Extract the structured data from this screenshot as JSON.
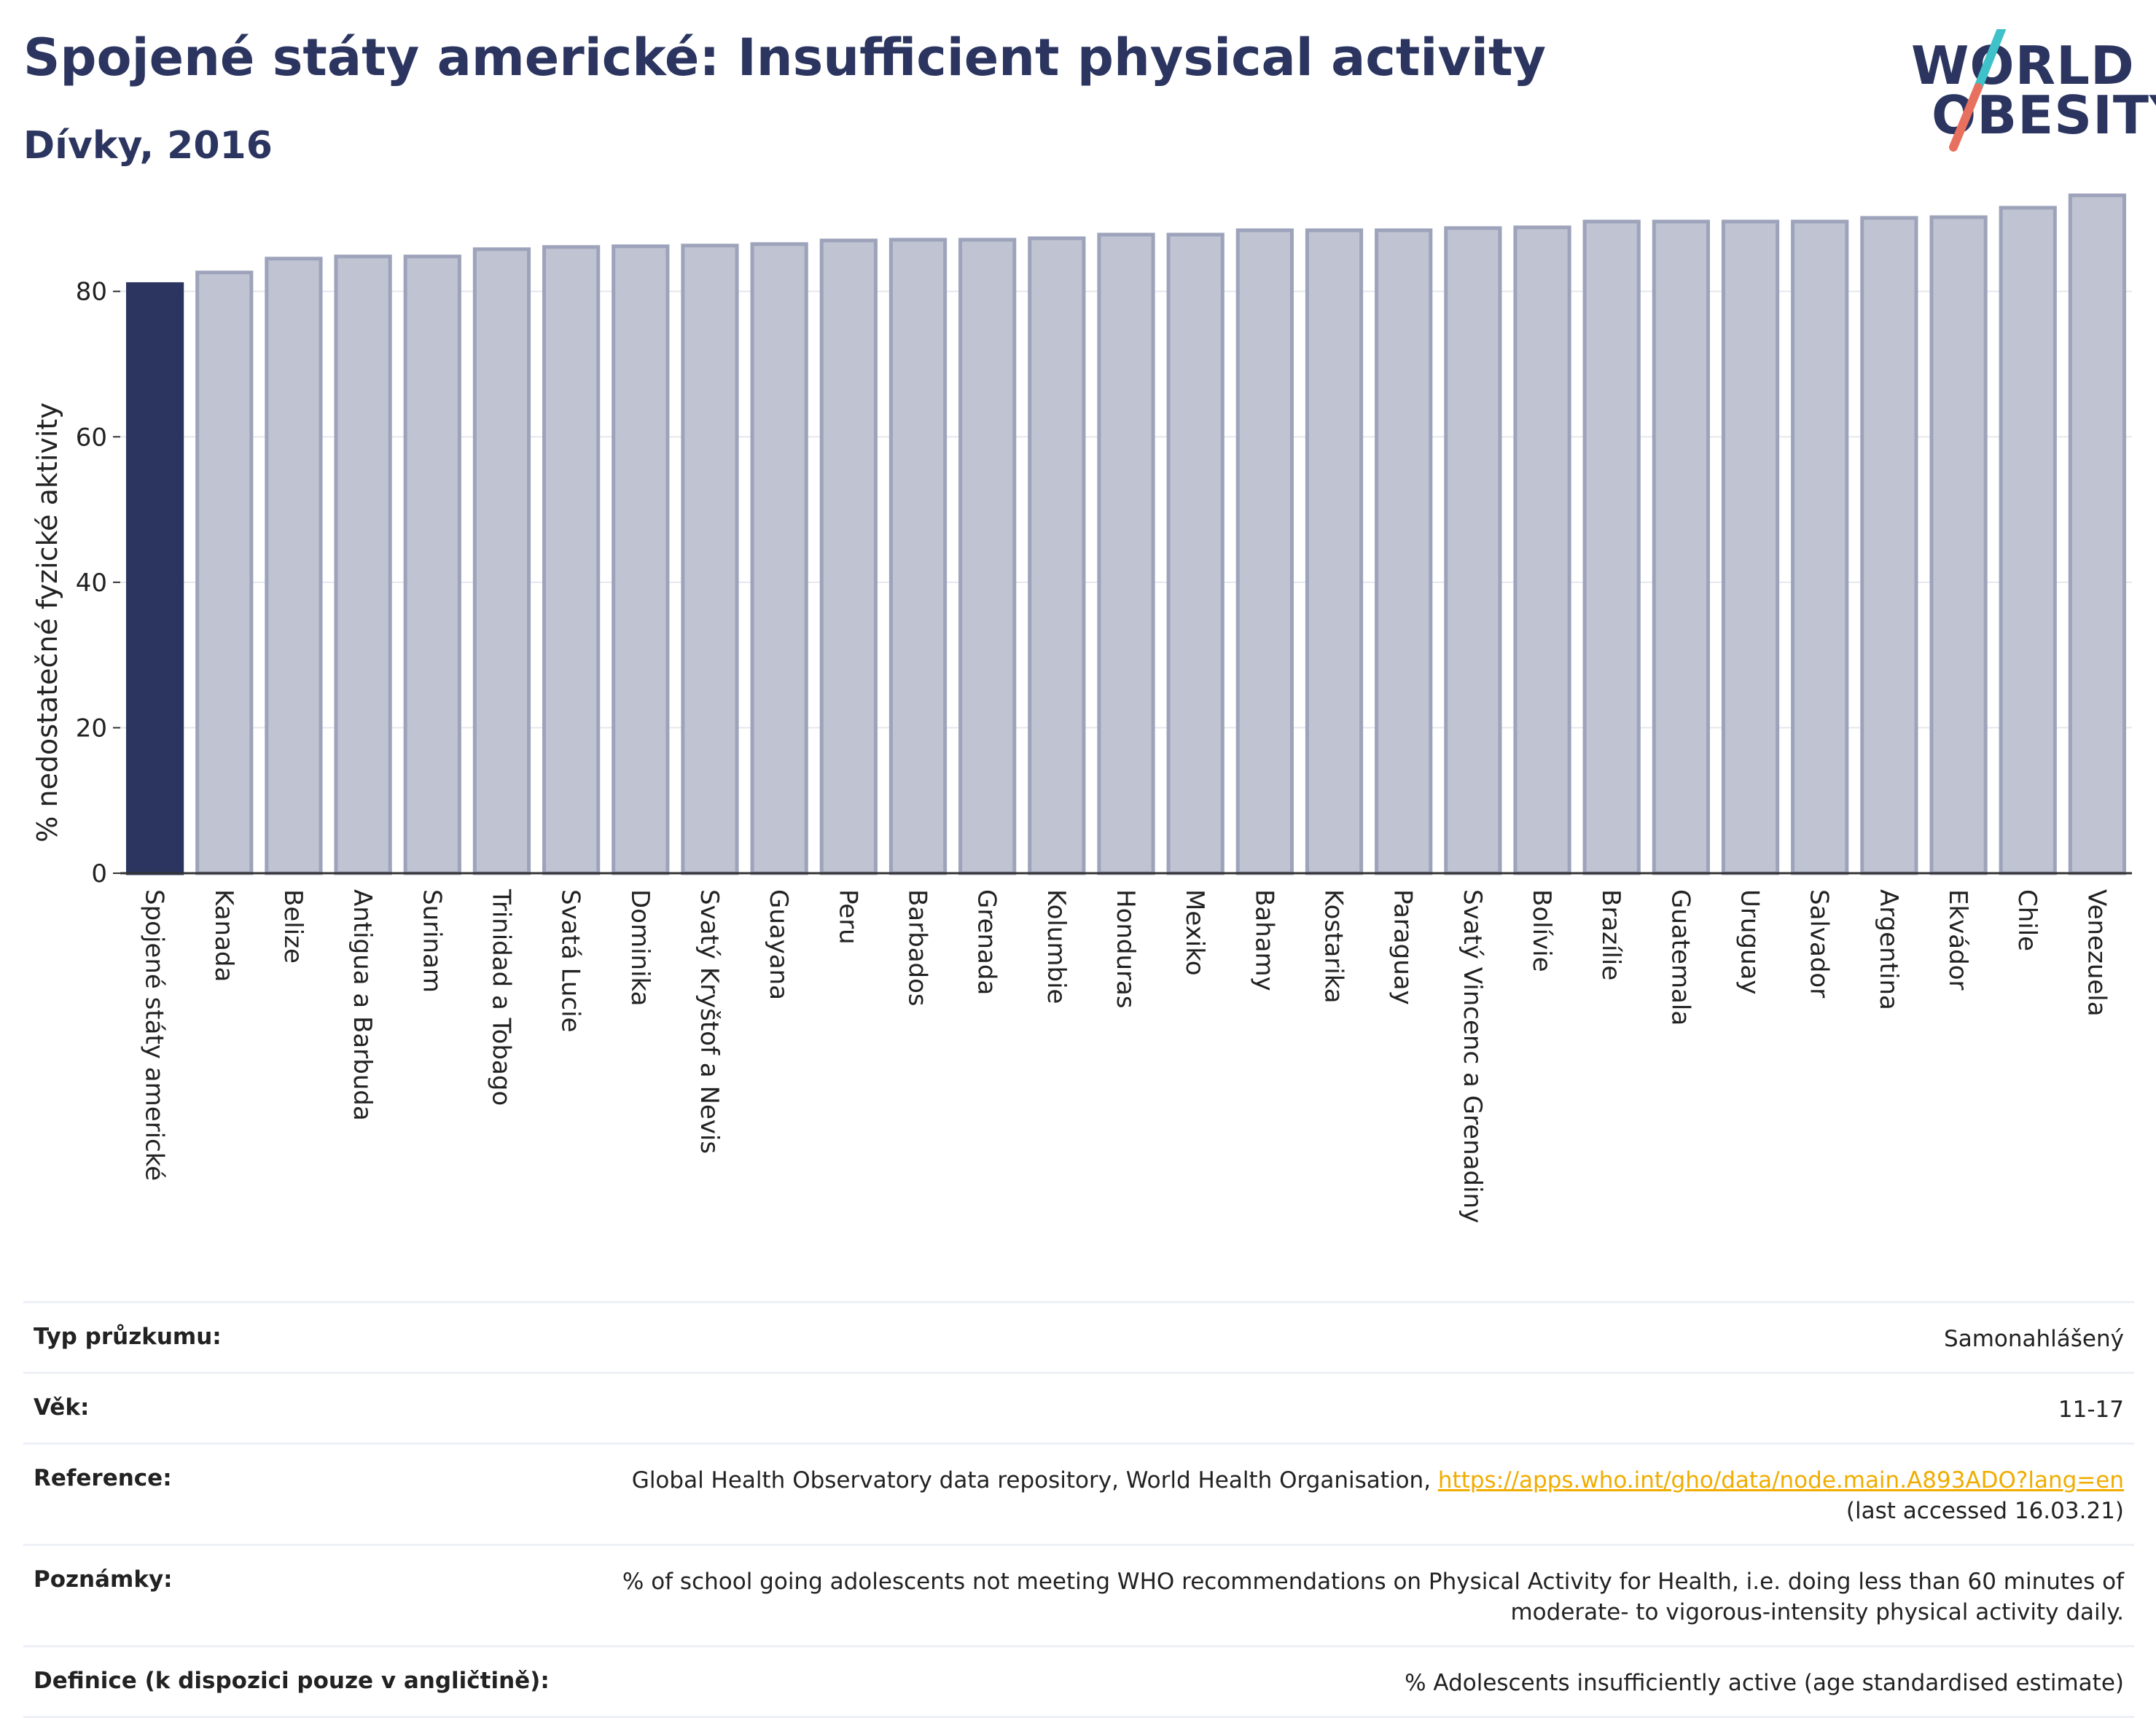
{
  "header": {
    "title": "Spojené státy americké: Insufficient physical activity",
    "subtitle": "Dívky, 2016"
  },
  "logo": {
    "line1": "WORLD",
    "line2": "OBESITY",
    "colors": [
      "#2b3560",
      "#3fc1c9",
      "#e8705f"
    ]
  },
  "chart_data": {
    "type": "bar",
    "ylabel": "% nedostatečné fyzické aktivity",
    "ylim": [
      0,
      93
    ],
    "yticks": [
      0,
      20,
      40,
      60,
      80
    ],
    "grid": true,
    "highlight_color": "#2b3560",
    "bar_color": "#c0c3d1",
    "bar_edge_color": "#9da3ba",
    "categories": [
      "Spojené státy americké",
      "Kanada",
      "Belize",
      "Antigua a Barbuda",
      "Surinam",
      "Trinidad a Tobago",
      "Svatá Lucie",
      "Dominika",
      "Svatý Kryštof a Nevis",
      "Guayana",
      "Peru",
      "Barbados",
      "Grenada",
      "Kolumbie",
      "Honduras",
      "Mexiko",
      "Bahamy",
      "Kostarika",
      "Paraguay",
      "Svatý Vincenc a Grenadiny",
      "Bolívie",
      "Brazílie",
      "Guatemala",
      "Uruguay",
      "Salvador",
      "Argentina",
      "Ekvádor",
      "Chile",
      "Venezuela"
    ],
    "values": [
      81.0,
      82.6,
      84.5,
      84.8,
      84.8,
      85.8,
      86.1,
      86.2,
      86.3,
      86.5,
      87.0,
      87.1,
      87.1,
      87.3,
      87.8,
      87.8,
      88.4,
      88.4,
      88.4,
      88.7,
      88.8,
      89.6,
      89.6,
      89.6,
      89.6,
      90.1,
      90.2,
      91.5,
      93.2
    ],
    "highlight_index": 0
  },
  "info": [
    {
      "label": "Typ průzkumu:",
      "value": "Samonahlášený"
    },
    {
      "label": "Věk:",
      "value": "11-17"
    },
    {
      "label": "Reference:",
      "value": "Global Health Observatory data repository, World Health Organisation,",
      "link": "https://apps.who.int/gho/data/node.main.A893ADO?lang=en",
      "value_after": "(last accessed 16.03.21)"
    },
    {
      "label": "Poznámky:",
      "value": "% of school going adolescents not meeting WHO recommendations on Physical Activity for Health, i.e. doing less than 60 minutes of moderate- to vigorous-intensity physical activity daily."
    },
    {
      "label": "Definice (k dispozici pouze v angličtině):",
      "value": "% Adolescents insufficiently active (age standardised estimate)"
    }
  ]
}
